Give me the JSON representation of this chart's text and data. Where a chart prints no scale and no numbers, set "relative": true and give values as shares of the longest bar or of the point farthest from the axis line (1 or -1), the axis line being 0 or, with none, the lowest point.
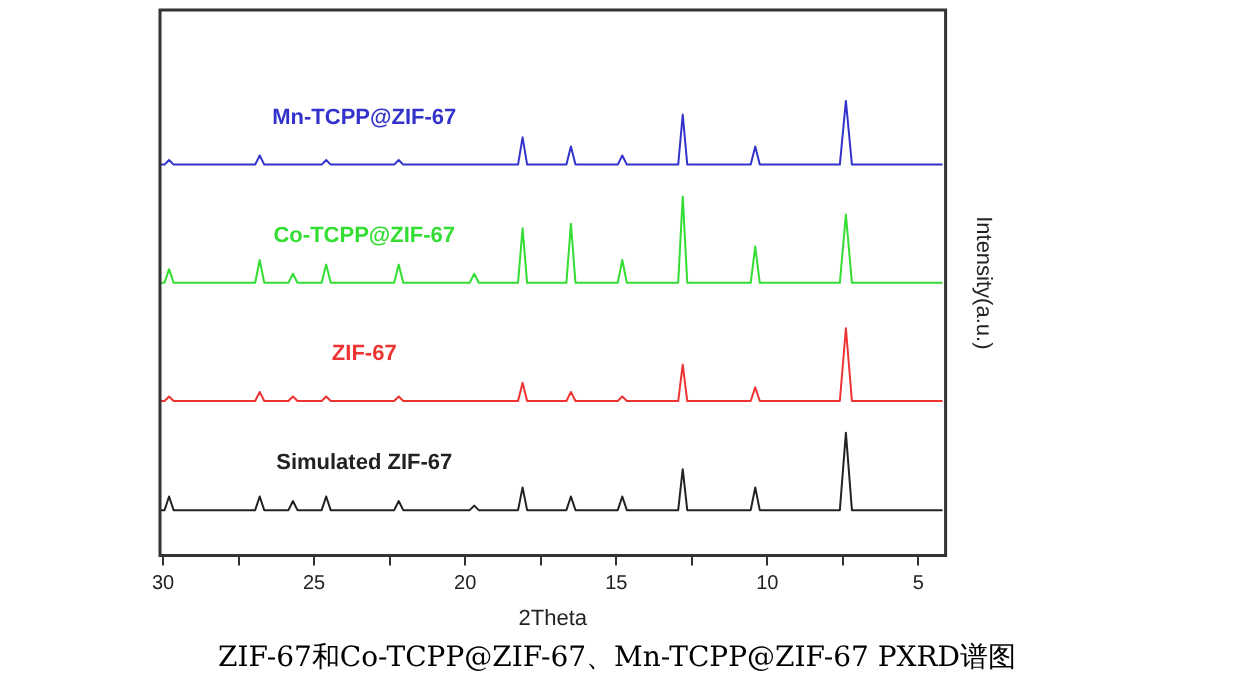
{
  "chart_data": {
    "type": "line",
    "relative": true,
    "xlabel": "2Theta",
    "ylabel": "Intensity(a.u.)",
    "legend": false,
    "marker": "none",
    "line_style": "solid",
    "grid": false,
    "xlim": [
      30.1,
      4.1
    ],
    "xticks": [
      30,
      {
        "value": 27.5,
        "label": null
      },
      25,
      {
        "value": 22.5,
        "label": null
      },
      20,
      {
        "value": 17.5,
        "label": null
      },
      15,
      {
        "value": 12.5,
        "label": null
      },
      10,
      {
        "value": 7.5,
        "label": null
      },
      5
    ],
    "x": [
      30.1,
      29.95,
      29.8,
      29.65,
      26.95,
      26.8,
      26.65,
      25.85,
      25.7,
      25.55,
      24.75,
      24.6,
      24.45,
      22.35,
      22.2,
      22.05,
      19.85,
      19.7,
      19.55,
      18.25,
      18.1,
      17.95,
      16.65,
      16.5,
      16.35,
      14.95,
      14.8,
      14.65,
      12.95,
      12.8,
      12.65,
      10.55,
      10.4,
      10.25,
      7.6,
      7.4,
      7.2,
      4.2
    ],
    "series": [
      {
        "name": "Mn-TCPP@ZIF-67",
        "color": "#3333cc",
        "values": [
          0.86,
          0.86,
          0.87,
          0.86,
          0.86,
          0.88,
          0.86,
          0.86,
          0.86,
          0.86,
          0.86,
          0.87,
          0.86,
          0.86,
          0.87,
          0.86,
          0.86,
          0.86,
          0.86,
          0.86,
          0.92,
          0.86,
          0.86,
          0.9,
          0.86,
          0.86,
          0.88,
          0.86,
          0.86,
          0.97,
          0.86,
          0.86,
          0.9,
          0.86,
          0.86,
          1.0,
          0.86,
          0.86
        ]
      },
      {
        "name": "Co-TCPP@ZIF-67",
        "color": "#33dd33",
        "values": [
          0.6,
          0.6,
          0.63,
          0.6,
          0.6,
          0.65,
          0.6,
          0.6,
          0.62,
          0.6,
          0.6,
          0.64,
          0.6,
          0.6,
          0.64,
          0.6,
          0.6,
          0.62,
          0.6,
          0.6,
          0.72,
          0.6,
          0.6,
          0.73,
          0.6,
          0.6,
          0.65,
          0.6,
          0.6,
          0.79,
          0.6,
          0.6,
          0.68,
          0.6,
          0.6,
          0.75,
          0.6,
          0.6
        ]
      },
      {
        "name": "ZIF-67",
        "color": "#ee3333",
        "values": [
          0.34,
          0.34,
          0.35,
          0.34,
          0.34,
          0.36,
          0.34,
          0.34,
          0.35,
          0.34,
          0.34,
          0.35,
          0.34,
          0.34,
          0.35,
          0.34,
          0.34,
          0.34,
          0.34,
          0.34,
          0.38,
          0.34,
          0.34,
          0.36,
          0.34,
          0.34,
          0.35,
          0.34,
          0.34,
          0.42,
          0.34,
          0.34,
          0.37,
          0.34,
          0.34,
          0.5,
          0.34,
          0.34
        ]
      },
      {
        "name": "Simulated ZIF-67",
        "color": "#222222",
        "values": [
          0.1,
          0.1,
          0.13,
          0.1,
          0.1,
          0.13,
          0.1,
          0.1,
          0.12,
          0.1,
          0.1,
          0.13,
          0.1,
          0.1,
          0.12,
          0.1,
          0.1,
          0.11,
          0.1,
          0.1,
          0.15,
          0.1,
          0.1,
          0.13,
          0.1,
          0.1,
          0.13,
          0.1,
          0.1,
          0.19,
          0.1,
          0.1,
          0.15,
          0.1,
          0.1,
          0.27,
          0.1,
          0.1
        ]
      }
    ],
    "annotations": [
      "ZIF-67和Co-TCPP@ZIF-67、Mn-TCPP@ZIF-67 PXRD谱图"
    ]
  }
}
